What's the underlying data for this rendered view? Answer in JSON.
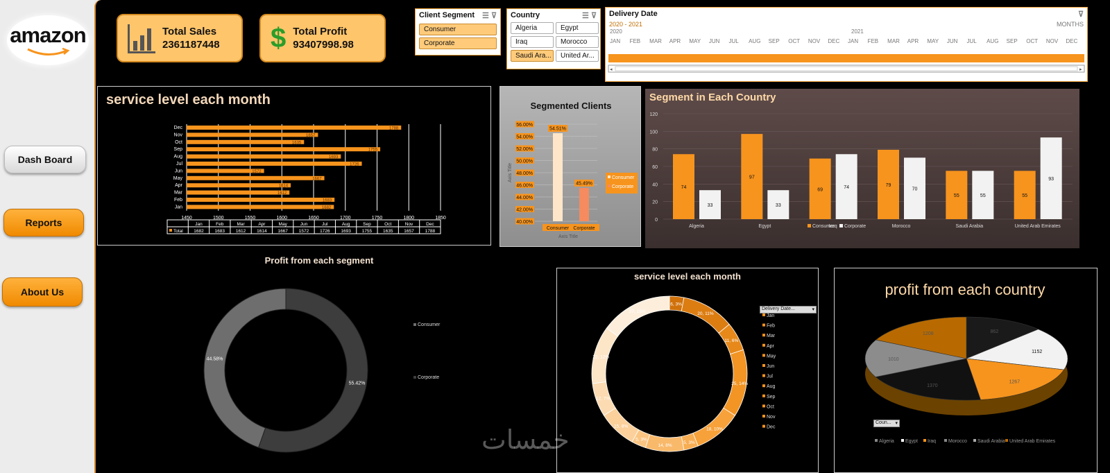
{
  "sidebar": {
    "logo_text": "amazon",
    "nav": [
      {
        "label": "Dash Board"
      },
      {
        "label": "Reports"
      },
      {
        "label": "About Us"
      }
    ]
  },
  "kpis": [
    {
      "title": "Total Sales",
      "value": "2361187448",
      "icon": "bar-chart-icon"
    },
    {
      "title": "Total Profit",
      "value": "93407998.98",
      "icon": "dollar-icon"
    }
  ],
  "slicers": {
    "segment": {
      "title": "Client Segment",
      "items": [
        "Consumer",
        "Corporate"
      ]
    },
    "country": {
      "title": "Country",
      "items": [
        "Algeria",
        "Egypt",
        "Iraq",
        "Morocco",
        "Saudi Ara...",
        "United Ar..."
      ]
    },
    "timeline": {
      "title": "Delivery Date",
      "range": "2020 - 2021",
      "level": "MONTHS",
      "years": [
        "2020",
        "2021"
      ],
      "months": [
        "JAN",
        "FEB",
        "MAR",
        "APR",
        "MAY",
        "JUN",
        "JUL",
        "AUG",
        "SEP",
        "OCT",
        "NOV",
        "DEC",
        "JAN",
        "FEB",
        "MAR",
        "APR",
        "MAY",
        "JUN",
        "JUL",
        "AUG",
        "SEP",
        "OCT",
        "NOV",
        "DEC"
      ]
    }
  },
  "colors": {
    "accent": "#f7941d",
    "orange_dark": "#c06d00",
    "panel_brown": "#4a3c3a"
  },
  "chart_data": [
    {
      "type": "bar",
      "orientation": "horizontal",
      "title": "service level each month",
      "categories": [
        "Jan",
        "Feb",
        "Mar",
        "Apr",
        "May",
        "Jun",
        "Jul",
        "Aug",
        "Sep",
        "Oct",
        "Nov",
        "Dec"
      ],
      "series": [
        {
          "name": "Total",
          "values": [
            1682,
            1683,
            1612,
            1614,
            1667,
            1572,
            1726,
            1693,
            1755,
            1635,
            1657,
            1788
          ]
        }
      ],
      "xticks": [
        "1450",
        "1500",
        "1550",
        "1600",
        "1650",
        "1700",
        "1750",
        "1800",
        "1850"
      ],
      "xlim": [
        1450,
        1850
      ],
      "grid": true
    },
    {
      "type": "bar",
      "title": "Segmented Clients",
      "categories": [
        "Consumer",
        "Corporate"
      ],
      "values": [
        54.51,
        45.49
      ],
      "value_labels": [
        "54.51%",
        "45.49%"
      ],
      "yticks": [
        "56.00%",
        "54.00%",
        "52.00%",
        "50.00%",
        "48.00%",
        "46.00%",
        "44.00%",
        "42.00%",
        "40.00%"
      ],
      "ylim": [
        40,
        56
      ],
      "xlabel": "Axis Title",
      "ylabel": "Axis Title",
      "legend": [
        "Consumer",
        "Corporate"
      ],
      "legend_position": "right"
    },
    {
      "type": "bar",
      "title": "Segment in Each Country",
      "categories": [
        "Algeria",
        "Egypt",
        "Iraq",
        "Morocco",
        "Saudi Arabia",
        "United Arab Emirates"
      ],
      "series": [
        {
          "name": "Consumer",
          "values": [
            74,
            97,
            69,
            79,
            55,
            55
          ]
        },
        {
          "name": "Corporate",
          "values": [
            33,
            33,
            74,
            70,
            55,
            93
          ]
        }
      ],
      "yticks": [
        "0",
        "20",
        "40",
        "60",
        "80",
        "100",
        "120"
      ],
      "ylim": [
        0,
        120
      ],
      "legend_position": "bottom"
    },
    {
      "type": "pie",
      "title": "Profit from each segment",
      "categories": [
        "Consumer",
        "Corporate"
      ],
      "values": [
        44.58,
        55.42
      ],
      "value_labels": [
        "44.58%",
        "55.42%"
      ],
      "legend_position": "right"
    },
    {
      "type": "pie",
      "title": "service level each month",
      "categories": [
        "Jan",
        "Feb",
        "Mar",
        "Apr",
        "May",
        "Jun",
        "Jul",
        "Aug",
        "Sep",
        "Oct",
        "Nov",
        "Dec"
      ],
      "values": [
        3,
        11,
        6,
        14,
        10,
        3,
        8,
        3,
        8,
        7,
        12,
        15
      ],
      "value_labels": [
        "6, 3%",
        "20, 11%",
        "11, 6%",
        "25, 14%",
        "18, 10%",
        "5, 3%",
        "14, 8%",
        "5, 3%",
        "15, 8%",
        "12, 7%",
        "22, 12%",
        "27, 15%"
      ],
      "filter_button": "Delivery Date...",
      "legend_position": "right"
    },
    {
      "type": "pie",
      "title": "profit from each country",
      "categories": [
        "Algeria",
        "Egypt",
        "Iraq",
        "Morocco",
        "Saudi Arabia",
        "United Arab Emirates"
      ],
      "values": [
        862,
        1152,
        1267,
        1370,
        1010,
        1208
      ],
      "value_labels": [
        "862",
        "1152",
        "1267",
        "1370",
        "1010",
        "1208"
      ],
      "filter_button": "Coun...",
      "legend_position": "bottom"
    }
  ],
  "watermark": "خمسات"
}
